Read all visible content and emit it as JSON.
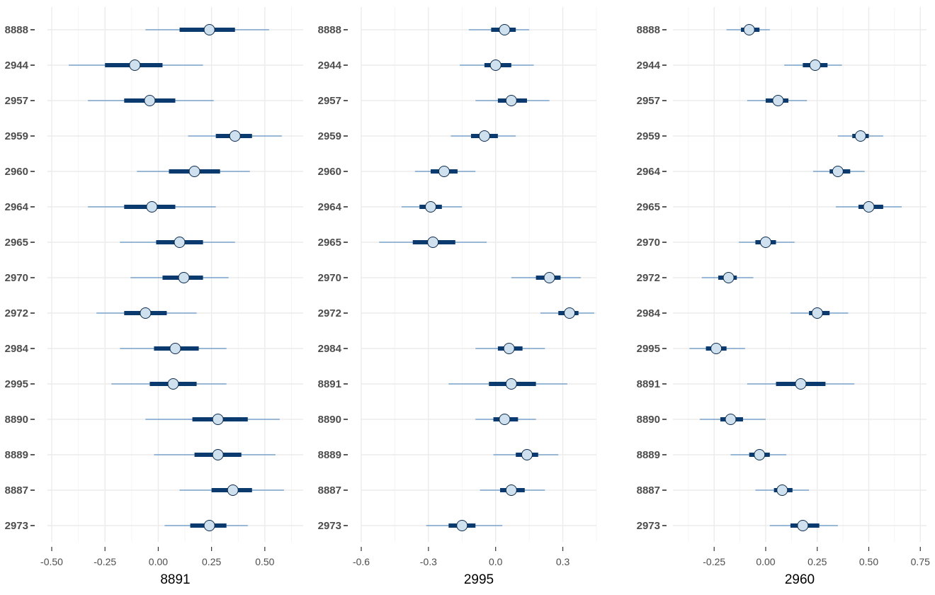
{
  "colors": {
    "thin": "#3d7ab8",
    "thick": "#0b3a6e",
    "point_fill": "#cfe0ef",
    "point_stroke": "#0b2a4a"
  },
  "chart_data": [
    {
      "type": "interval",
      "xlabel": "8891",
      "xlim": [
        -0.52,
        0.68
      ],
      "xticks": [
        -0.5,
        -0.25,
        0.0,
        0.25,
        0.5
      ],
      "xtick_labels": [
        "-0.50",
        "-0.25",
        "0.00",
        "0.25",
        "0.50"
      ],
      "grid": true,
      "rows": [
        {
          "label": "8888",
          "point": 0.24,
          "inner": [
            0.1,
            0.36
          ],
          "outer": [
            -0.06,
            0.52
          ]
        },
        {
          "label": "2944",
          "point": -0.11,
          "inner": [
            -0.25,
            0.02
          ],
          "outer": [
            -0.42,
            0.21
          ]
        },
        {
          "label": "2957",
          "point": -0.04,
          "inner": [
            -0.16,
            0.08
          ],
          "outer": [
            -0.33,
            0.26
          ]
        },
        {
          "label": "2959",
          "point": 0.36,
          "inner": [
            0.27,
            0.44
          ],
          "outer": [
            0.14,
            0.58
          ]
        },
        {
          "label": "2960",
          "point": 0.17,
          "inner": [
            0.05,
            0.29
          ],
          "outer": [
            -0.1,
            0.43
          ]
        },
        {
          "label": "2964",
          "point": -0.03,
          "inner": [
            -0.16,
            0.08
          ],
          "outer": [
            -0.33,
            0.27
          ]
        },
        {
          "label": "2965",
          "point": 0.1,
          "inner": [
            -0.01,
            0.21
          ],
          "outer": [
            -0.18,
            0.36
          ]
        },
        {
          "label": "2970",
          "point": 0.12,
          "inner": [
            0.02,
            0.21
          ],
          "outer": [
            -0.13,
            0.33
          ]
        },
        {
          "label": "2972",
          "point": -0.06,
          "inner": [
            -0.16,
            0.04
          ],
          "outer": [
            -0.29,
            0.18
          ]
        },
        {
          "label": "2984",
          "point": 0.08,
          "inner": [
            -0.02,
            0.19
          ],
          "outer": [
            -0.18,
            0.32
          ]
        },
        {
          "label": "2995",
          "point": 0.07,
          "inner": [
            -0.04,
            0.18
          ],
          "outer": [
            -0.22,
            0.32
          ]
        },
        {
          "label": "8890",
          "point": 0.28,
          "inner": [
            0.16,
            0.42
          ],
          "outer": [
            -0.06,
            0.57
          ]
        },
        {
          "label": "8889",
          "point": 0.28,
          "inner": [
            0.17,
            0.39
          ],
          "outer": [
            -0.02,
            0.55
          ]
        },
        {
          "label": "8887",
          "point": 0.35,
          "inner": [
            0.25,
            0.44
          ],
          "outer": [
            0.1,
            0.59
          ]
        },
        {
          "label": "2973",
          "point": 0.24,
          "inner": [
            0.15,
            0.32
          ],
          "outer": [
            0.03,
            0.42
          ]
        }
      ]
    },
    {
      "type": "interval",
      "xlabel": "2995",
      "xlim": [
        -0.6,
        0.45
      ],
      "xticks": [
        -0.6,
        -0.3,
        0.0,
        0.3
      ],
      "xtick_labels": [
        "-0.6",
        "-0.3",
        "0.0",
        "0.3"
      ],
      "grid": true,
      "rows": [
        {
          "label": "8888",
          "point": 0.04,
          "inner": [
            -0.02,
            0.09
          ],
          "outer": [
            -0.12,
            0.15
          ]
        },
        {
          "label": "2944",
          "point": 0.0,
          "inner": [
            -0.05,
            0.07
          ],
          "outer": [
            -0.16,
            0.17
          ]
        },
        {
          "label": "2957",
          "point": 0.07,
          "inner": [
            0.01,
            0.14
          ],
          "outer": [
            -0.09,
            0.24
          ]
        },
        {
          "label": "2959",
          "point": -0.05,
          "inner": [
            -0.11,
            0.01
          ],
          "outer": [
            -0.2,
            0.09
          ]
        },
        {
          "label": "2960",
          "point": -0.23,
          "inner": [
            -0.29,
            -0.17
          ],
          "outer": [
            -0.36,
            -0.09
          ]
        },
        {
          "label": "2964",
          "point": -0.29,
          "inner": [
            -0.34,
            -0.24
          ],
          "outer": [
            -0.42,
            -0.15
          ]
        },
        {
          "label": "2965",
          "point": -0.28,
          "inner": [
            -0.37,
            -0.18
          ],
          "outer": [
            -0.52,
            -0.04
          ]
        },
        {
          "label": "2970",
          "point": 0.24,
          "inner": [
            0.18,
            0.29
          ],
          "outer": [
            0.07,
            0.38
          ]
        },
        {
          "label": "2972",
          "point": 0.33,
          "inner": [
            0.28,
            0.37
          ],
          "outer": [
            0.2,
            0.44
          ]
        },
        {
          "label": "2984",
          "point": 0.06,
          "inner": [
            0.01,
            0.12
          ],
          "outer": [
            -0.09,
            0.22
          ]
        },
        {
          "label": "8891",
          "point": 0.07,
          "inner": [
            -0.03,
            0.18
          ],
          "outer": [
            -0.21,
            0.32
          ]
        },
        {
          "label": "8890",
          "point": 0.04,
          "inner": [
            -0.01,
            0.1
          ],
          "outer": [
            -0.09,
            0.18
          ]
        },
        {
          "label": "8889",
          "point": 0.14,
          "inner": [
            0.09,
            0.19
          ],
          "outer": [
            -0.01,
            0.28
          ]
        },
        {
          "label": "8887",
          "point": 0.07,
          "inner": [
            0.02,
            0.13
          ],
          "outer": [
            -0.07,
            0.22
          ]
        },
        {
          "label": "2973",
          "point": -0.15,
          "inner": [
            -0.21,
            -0.09
          ],
          "outer": [
            -0.31,
            0.03
          ]
        }
      ]
    },
    {
      "type": "interval",
      "xlabel": "2960",
      "xlim": [
        -0.45,
        0.78
      ],
      "xticks": [
        -0.25,
        0.0,
        0.25,
        0.5,
        0.75
      ],
      "xtick_labels": [
        "-0.25",
        "0.00",
        "0.25",
        "0.50",
        "0.75"
      ],
      "grid": true,
      "rows": [
        {
          "label": "8888",
          "point": -0.08,
          "inner": [
            -0.12,
            -0.03
          ],
          "outer": [
            -0.19,
            0.02
          ]
        },
        {
          "label": "2944",
          "point": 0.24,
          "inner": [
            0.18,
            0.3
          ],
          "outer": [
            0.09,
            0.37
          ]
        },
        {
          "label": "2957",
          "point": 0.06,
          "inner": [
            0.0,
            0.11
          ],
          "outer": [
            -0.09,
            0.2
          ]
        },
        {
          "label": "2959",
          "point": 0.46,
          "inner": [
            0.42,
            0.5
          ],
          "outer": [
            0.35,
            0.57
          ]
        },
        {
          "label": "2964",
          "point": 0.35,
          "inner": [
            0.31,
            0.41
          ],
          "outer": [
            0.23,
            0.48
          ]
        },
        {
          "label": "2965",
          "point": 0.5,
          "inner": [
            0.45,
            0.57
          ],
          "outer": [
            0.34,
            0.66
          ]
        },
        {
          "label": "2970",
          "point": 0.0,
          "inner": [
            -0.05,
            0.05
          ],
          "outer": [
            -0.13,
            0.14
          ]
        },
        {
          "label": "2972",
          "point": -0.18,
          "inner": [
            -0.23,
            -0.14
          ],
          "outer": [
            -0.31,
            -0.06
          ]
        },
        {
          "label": "2984",
          "point": 0.25,
          "inner": [
            0.21,
            0.31
          ],
          "outer": [
            0.12,
            0.4
          ]
        },
        {
          "label": "2995",
          "point": -0.24,
          "inner": [
            -0.29,
            -0.19
          ],
          "outer": [
            -0.37,
            -0.1
          ]
        },
        {
          "label": "8891",
          "point": 0.17,
          "inner": [
            0.05,
            0.29
          ],
          "outer": [
            -0.09,
            0.43
          ]
        },
        {
          "label": "8890",
          "point": -0.17,
          "inner": [
            -0.22,
            -0.11
          ],
          "outer": [
            -0.32,
            0.0
          ]
        },
        {
          "label": "8889",
          "point": -0.03,
          "inner": [
            -0.08,
            0.02
          ],
          "outer": [
            -0.17,
            0.1
          ]
        },
        {
          "label": "8887",
          "point": 0.08,
          "inner": [
            0.04,
            0.13
          ],
          "outer": [
            -0.05,
            0.21
          ]
        },
        {
          "label": "2973",
          "point": 0.18,
          "inner": [
            0.12,
            0.26
          ],
          "outer": [
            0.02,
            0.35
          ]
        }
      ]
    }
  ]
}
